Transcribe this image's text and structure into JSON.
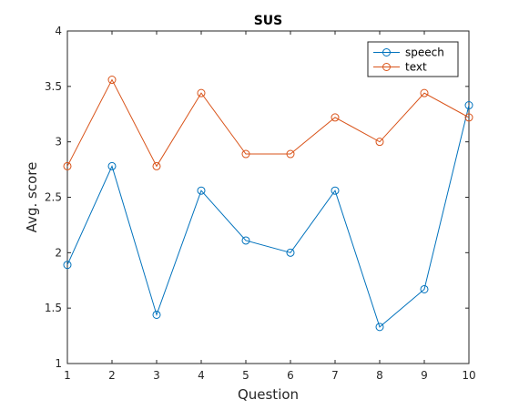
{
  "chart_data": {
    "type": "line",
    "title": "SUS",
    "xlabel": "Question",
    "ylabel": "Avg. score",
    "x": [
      1,
      2,
      3,
      4,
      5,
      6,
      7,
      8,
      9,
      10
    ],
    "xlim": [
      1,
      10
    ],
    "ylim": [
      1,
      4
    ],
    "xticks": [
      "1",
      "2",
      "3",
      "4",
      "5",
      "6",
      "7",
      "8",
      "9",
      "10"
    ],
    "yticks": [
      "1",
      "1.5",
      "2",
      "2.5",
      "3",
      "3.5",
      "4"
    ],
    "grid": false,
    "legend_position": "top-right",
    "series": [
      {
        "name": "speech",
        "color": "#0072BD",
        "marker": "circle",
        "values": [
          1.89,
          2.78,
          1.44,
          2.56,
          2.11,
          2.0,
          2.56,
          1.33,
          1.67,
          3.33
        ]
      },
      {
        "name": "text",
        "color": "#D95319",
        "marker": "circle",
        "values": [
          2.78,
          3.56,
          2.78,
          3.44,
          2.89,
          2.89,
          3.22,
          3.0,
          3.44,
          3.22
        ]
      }
    ]
  }
}
